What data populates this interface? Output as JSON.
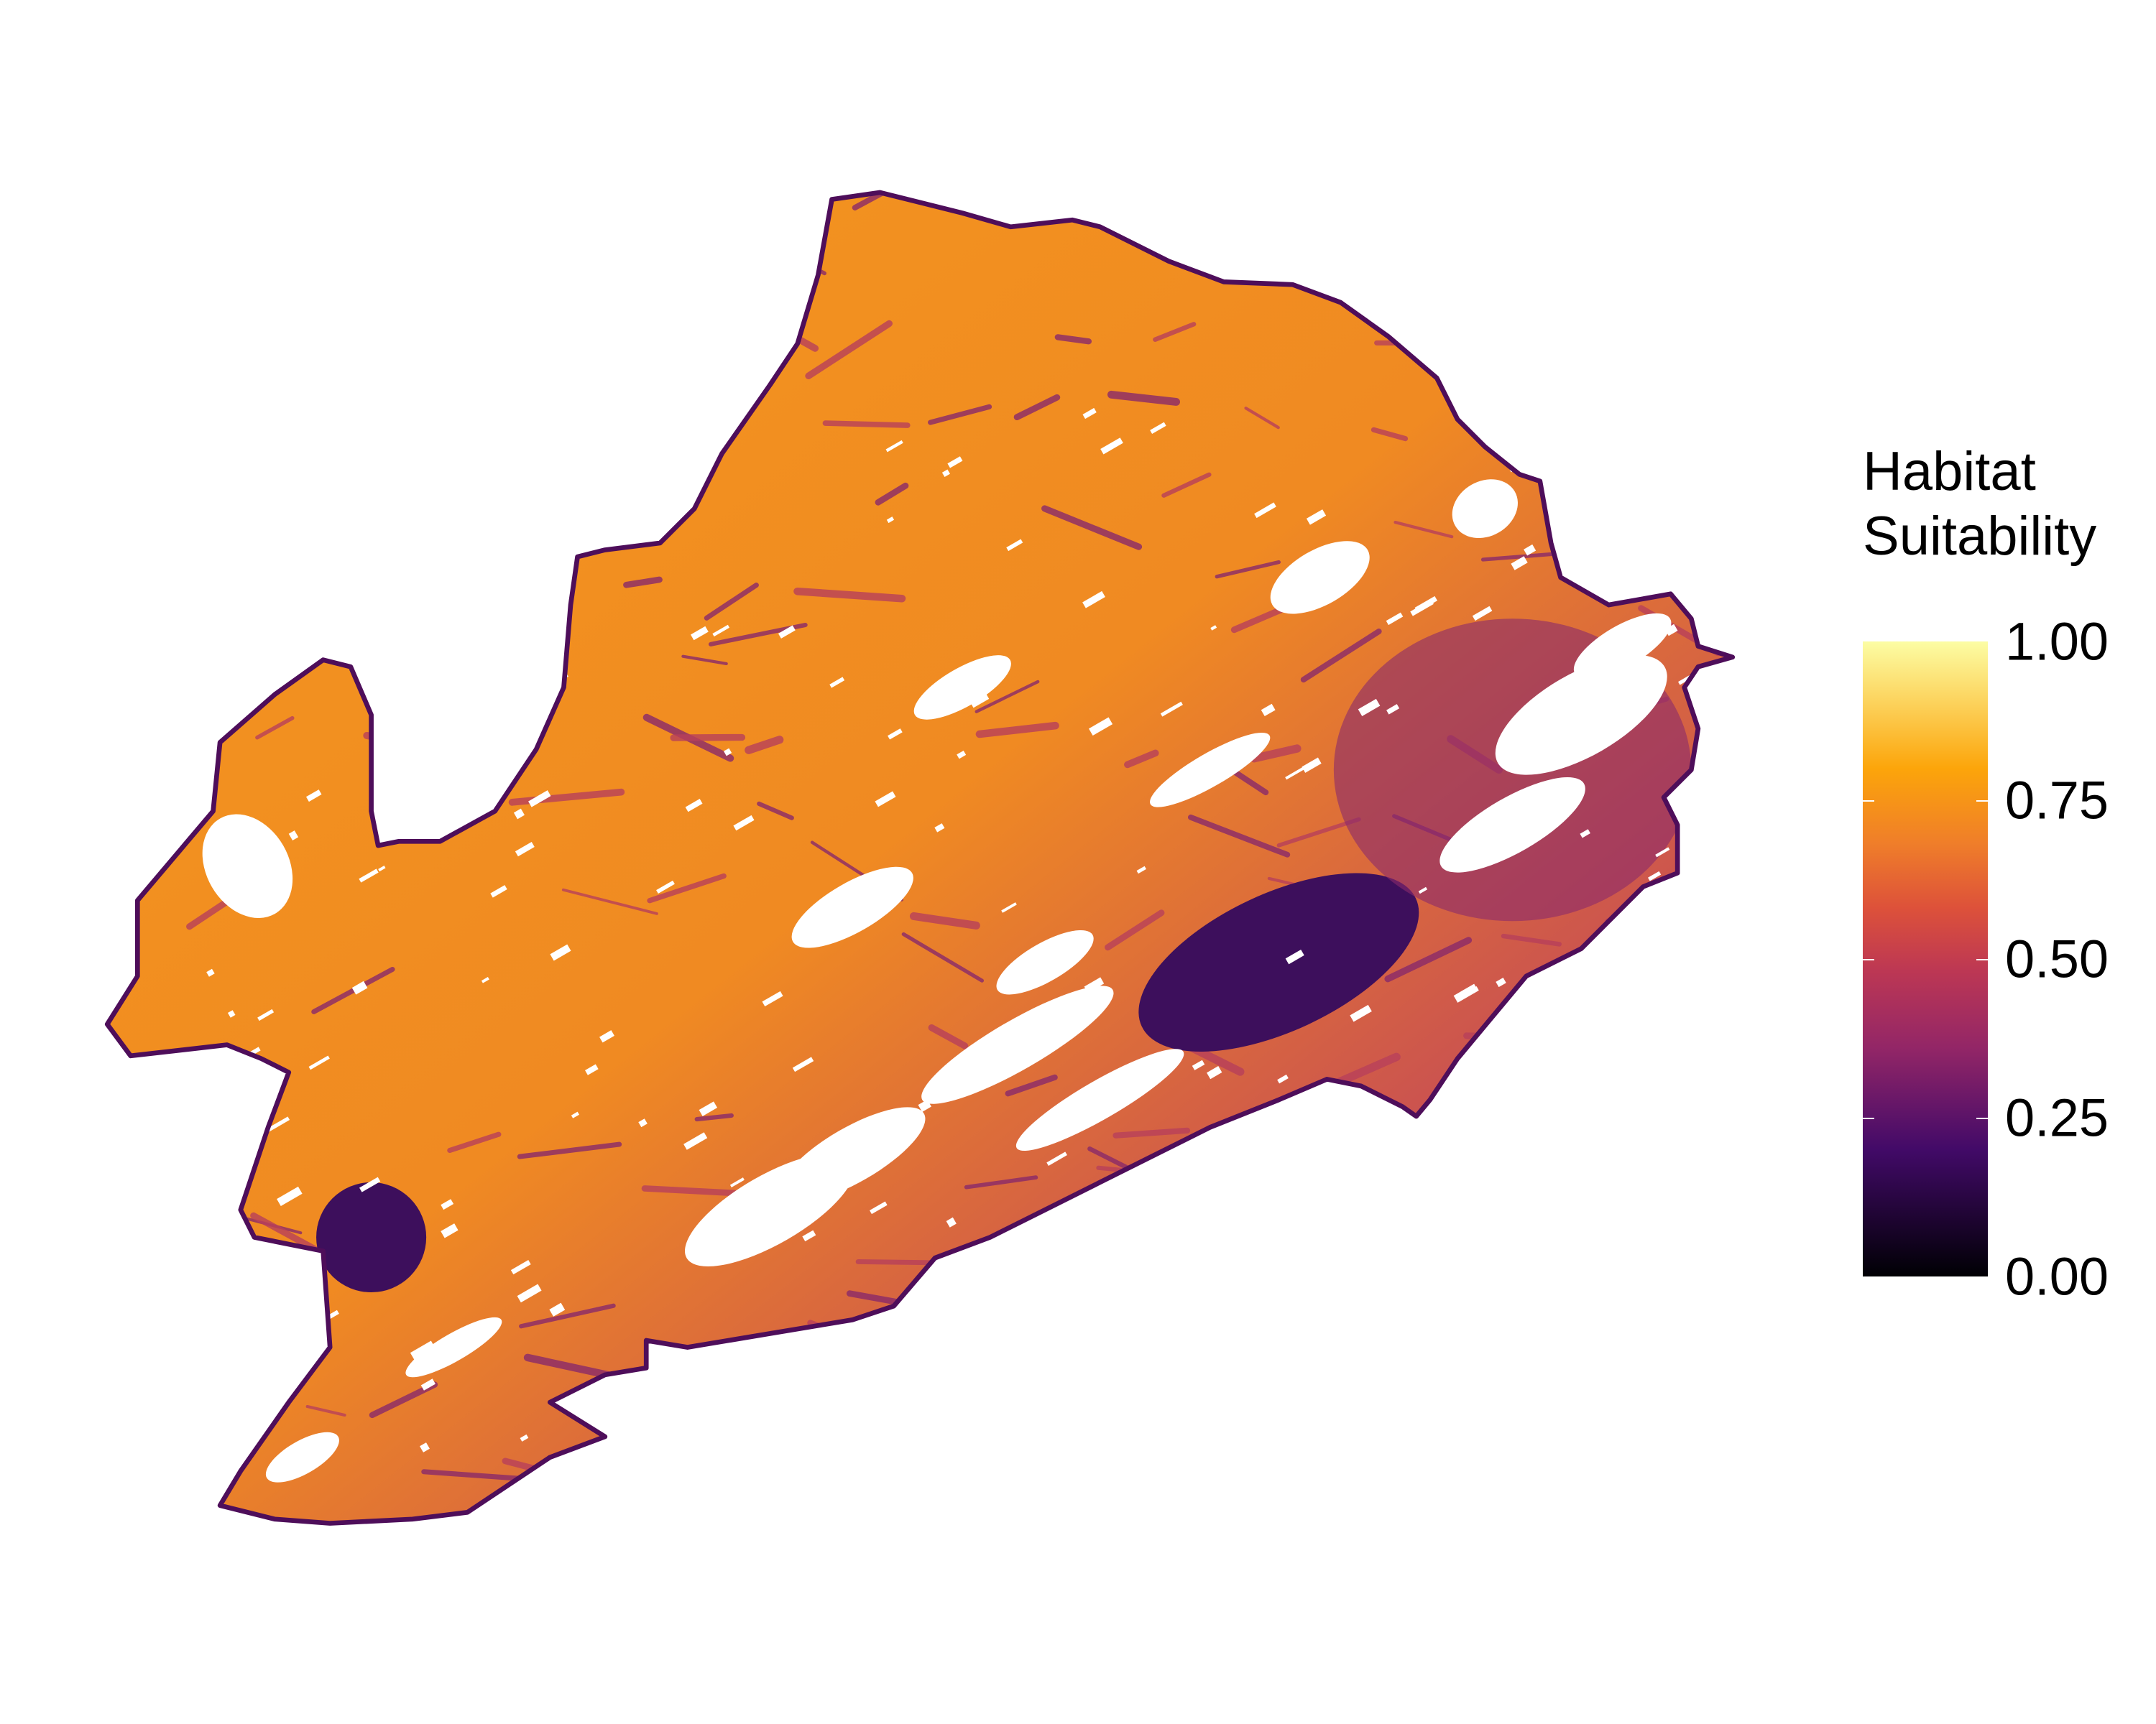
{
  "legend": {
    "title_line1": "Habitat",
    "title_line2": "Suitability",
    "ticks": [
      "1.00",
      "0.75",
      "0.50",
      "0.25",
      "0.00"
    ],
    "range": [
      0,
      1
    ],
    "colors": {
      "c100": "#fcfda4",
      "c85": "#fcc84a",
      "c80": "#fca50a",
      "c65": "#ef7d2a",
      "c55": "#dd513a",
      "c45": "#bc3754",
      "c35": "#932667",
      "c20": "#420a68",
      "c00": "#000004"
    }
  },
  "map": {
    "outline_color": "#4e0e5a",
    "no_data_color": "#ffffff"
  }
}
